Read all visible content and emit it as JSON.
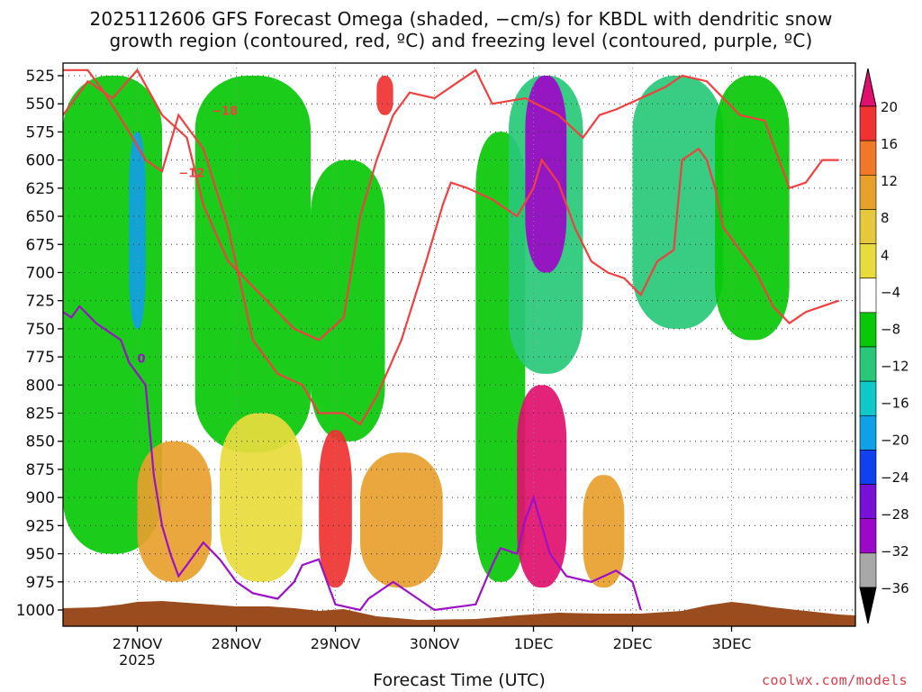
{
  "title_line1": "2025112606 GFS Forecast Omega (shaded, −cm/s) for KBDL with dendritic snow",
  "title_line2": "growth region (contoured, red, ºC) and freezing level (contoured, purple, ºC)",
  "chart_data": {
    "type": "heatmap",
    "title": "2025112606 GFS Forecast Omega (shaded, −cm/s) for KBDL with dendritic snow growth region (contoured, red, ºC) and freezing level (contoured, purple, ºC)",
    "xlabel": "Forecast Time (UTC)",
    "ylabel": "",
    "run": "2025112606",
    "model": "GFS",
    "station": "KBDL",
    "x_range_hours": [
      0,
      192
    ],
    "x_ticks": [
      {
        "label": "27NOV",
        "sub": "2025",
        "hour": 18
      },
      {
        "label": "28NOV",
        "sub": "",
        "hour": 42
      },
      {
        "label": "29NOV",
        "sub": "",
        "hour": 66
      },
      {
        "label": "30NOV",
        "sub": "",
        "hour": 90
      },
      {
        "label": "1DEC",
        "sub": "",
        "hour": 114
      },
      {
        "label": "2DEC",
        "sub": "",
        "hour": 138
      },
      {
        "label": "3DEC",
        "sub": "",
        "hour": 162
      }
    ],
    "y_levels_hpa": [
      525,
      550,
      575,
      600,
      625,
      650,
      675,
      700,
      725,
      750,
      775,
      800,
      825,
      850,
      875,
      900,
      925,
      950,
      975,
      1000
    ],
    "colorbar": {
      "labels": [
        "20",
        "16",
        "12",
        "8",
        "4",
        "−4",
        "−8",
        "−12",
        "−16",
        "−20",
        "−24",
        "−28",
        "−32",
        "−36"
      ],
      "colors": [
        "#e0106e",
        "#f03232",
        "#f07828",
        "#e8a02c",
        "#e6c83c",
        "#e8dc3c",
        "#ffffff",
        "#08c808",
        "#28c878",
        "#10c8c8",
        "#10a0e6",
        "#1040f0",
        "#7810d8",
        "#9c08c8",
        "#a8a8a8",
        "#000000"
      ]
    },
    "omega_regions": [
      {
        "name": "ascent-band-26nov",
        "h0": 0,
        "h1": 24,
        "p_top": 525,
        "p_bot": 950,
        "value": -8
      },
      {
        "name": "ascent-core-27nov",
        "h0": 16,
        "h1": 20,
        "p_top": 575,
        "p_bot": 750,
        "value": -20
      },
      {
        "name": "ascent-band-28nov",
        "h0": 32,
        "h1": 60,
        "p_top": 525,
        "p_bot": 860,
        "value": -8
      },
      {
        "name": "ascent-band-29nov",
        "h0": 60,
        "h1": 78,
        "p_top": 600,
        "p_bot": 850,
        "value": -8
      },
      {
        "name": "ascent-band-30nov",
        "h0": 100,
        "h1": 112,
        "p_top": 575,
        "p_bot": 975,
        "value": -8
      },
      {
        "name": "ascent-core-1dec",
        "h0": 108,
        "h1": 126,
        "p_top": 525,
        "p_bot": 790,
        "value": -12
      },
      {
        "name": "ascent-max-1dec",
        "h0": 112,
        "h1": 122,
        "p_top": 525,
        "p_bot": 700,
        "value": -28
      },
      {
        "name": "ascent-band-2dec",
        "h0": 138,
        "h1": 160,
        "p_top": 525,
        "p_bot": 750,
        "value": -12
      },
      {
        "name": "ascent-band-3dec",
        "h0": 158,
        "h1": 176,
        "p_top": 525,
        "p_bot": 760,
        "value": -8
      },
      {
        "name": "descent-low-27nov",
        "h0": 18,
        "h1": 36,
        "p_top": 850,
        "p_bot": 975,
        "value": 8
      },
      {
        "name": "descent-low-28nov",
        "h0": 38,
        "h1": 58,
        "p_top": 825,
        "p_bot": 975,
        "value": 4
      },
      {
        "name": "descent-core-29nov",
        "h0": 62,
        "h1": 70,
        "p_top": 840,
        "p_bot": 980,
        "value": 16
      },
      {
        "name": "descent-low-30nov",
        "h0": 72,
        "h1": 92,
        "p_top": 860,
        "p_bot": 980,
        "value": 8
      },
      {
        "name": "descent-core-1dec",
        "h0": 110,
        "h1": 122,
        "p_top": 800,
        "p_bot": 980,
        "value": 20
      },
      {
        "name": "descent-low-2dec",
        "h0": 126,
        "h1": 136,
        "p_top": 880,
        "p_bot": 980,
        "value": 8
      },
      {
        "name": "descent-upper-30nov",
        "h0": 76,
        "h1": 80,
        "p_top": 525,
        "p_bot": 560,
        "value": 16
      }
    ],
    "contours": [
      {
        "name": "minus-18-contour",
        "color": "#f04040",
        "label": "−18",
        "label_at": [
          36,
          560
        ],
        "points": [
          [
            0,
            560
          ],
          [
            6,
            530
          ],
          [
            12,
            545
          ],
          [
            18,
            520
          ],
          [
            24,
            560
          ],
          [
            30,
            580
          ],
          [
            34,
            640
          ],
          [
            40,
            690
          ],
          [
            48,
            720
          ],
          [
            56,
            750
          ],
          [
            62,
            760
          ],
          [
            68,
            740
          ],
          [
            72,
            650
          ],
          [
            76,
            600
          ],
          [
            80,
            560
          ],
          [
            84,
            540
          ],
          [
            90,
            545
          ],
          [
            96,
            530
          ],
          [
            100,
            520
          ],
          [
            104,
            550
          ],
          [
            112,
            545
          ],
          [
            120,
            560
          ],
          [
            126,
            580
          ],
          [
            130,
            560
          ],
          [
            134,
            555
          ],
          [
            140,
            545
          ],
          [
            146,
            535
          ],
          [
            150,
            525
          ],
          [
            156,
            530
          ],
          [
            164,
            560
          ],
          [
            170,
            565
          ],
          [
            176,
            625
          ],
          [
            180,
            620
          ],
          [
            184,
            600
          ],
          [
            188,
            600
          ]
        ]
      },
      {
        "name": "minus-12-contour",
        "color": "#f04040",
        "label": "−12",
        "label_at": [
          28,
          615
        ],
        "points": [
          [
            0,
            520
          ],
          [
            6,
            520
          ],
          [
            10,
            540
          ],
          [
            16,
            575
          ],
          [
            20,
            600
          ],
          [
            24,
            610
          ],
          [
            28,
            560
          ],
          [
            34,
            590
          ],
          [
            40,
            660
          ],
          [
            46,
            760
          ],
          [
            52,
            790
          ],
          [
            58,
            800
          ],
          [
            62,
            825
          ],
          [
            68,
            825
          ],
          [
            72,
            835
          ],
          [
            76,
            810
          ],
          [
            82,
            760
          ],
          [
            88,
            690
          ],
          [
            92,
            640
          ],
          [
            94,
            620
          ],
          [
            98,
            625
          ],
          [
            104,
            635
          ],
          [
            110,
            650
          ],
          [
            114,
            625
          ],
          [
            116,
            600
          ],
          [
            120,
            620
          ],
          [
            124,
            660
          ],
          [
            128,
            690
          ],
          [
            132,
            700
          ],
          [
            136,
            705
          ],
          [
            140,
            720
          ],
          [
            142,
            705
          ],
          [
            144,
            690
          ],
          [
            148,
            680
          ],
          [
            150,
            600
          ],
          [
            154,
            590
          ],
          [
            156,
            600
          ],
          [
            158,
            625
          ],
          [
            160,
            660
          ],
          [
            164,
            680
          ],
          [
            168,
            700
          ],
          [
            172,
            730
          ],
          [
            176,
            745
          ],
          [
            180,
            735
          ],
          [
            184,
            730
          ],
          [
            188,
            725
          ]
        ]
      },
      {
        "name": "freezing-level-contour",
        "color": "#9c10c8",
        "label": "0",
        "label_at": [
          18,
          780
        ],
        "points": [
          [
            0,
            735
          ],
          [
            2,
            740
          ],
          [
            4,
            730
          ],
          [
            8,
            745
          ],
          [
            14,
            760
          ],
          [
            16,
            780
          ],
          [
            20,
            800
          ],
          [
            22,
            880
          ],
          [
            24,
            925
          ],
          [
            26,
            950
          ],
          [
            28,
            970
          ],
          [
            30,
            960
          ],
          [
            34,
            940
          ],
          [
            38,
            955
          ],
          [
            42,
            975
          ],
          [
            46,
            985
          ],
          [
            52,
            990
          ],
          [
            56,
            975
          ],
          [
            58,
            960
          ],
          [
            62,
            955
          ],
          [
            64,
            975
          ],
          [
            66,
            995
          ],
          [
            72,
            1000
          ],
          [
            74,
            990
          ],
          [
            80,
            975
          ],
          [
            86,
            990
          ],
          [
            90,
            1000
          ],
          [
            100,
            995
          ],
          [
            104,
            960
          ],
          [
            106,
            945
          ],
          [
            110,
            950
          ],
          [
            112,
            920
          ],
          [
            114,
            900
          ],
          [
            118,
            950
          ],
          [
            122,
            970
          ],
          [
            128,
            975
          ],
          [
            134,
            965
          ],
          [
            138,
            975
          ],
          [
            140,
            1000
          ]
        ]
      }
    ]
  },
  "x_axis_label": "Forecast Time (UTC)",
  "credit": "coolwx.com/models"
}
